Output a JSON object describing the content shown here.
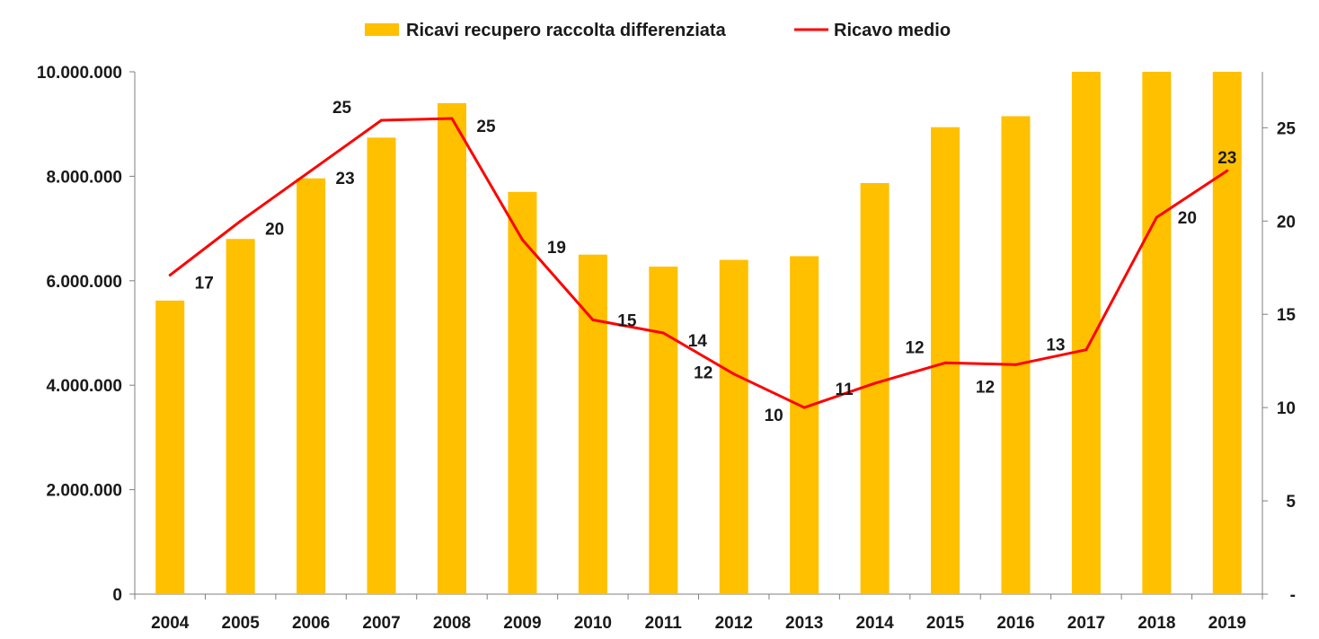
{
  "chart_data": {
    "type": "bar",
    "title": "",
    "categories": [
      "2004",
      "2005",
      "2006",
      "2007",
      "2008",
      "2009",
      "2010",
      "2011",
      "2012",
      "2013",
      "2014",
      "2015",
      "2016",
      "2017",
      "2018",
      "2019"
    ],
    "series": [
      {
        "name": "Ricavi recupero raccolta differenziata",
        "type": "bar",
        "axis": "left",
        "color": "#FFC000",
        "values": [
          5620000,
          6800000,
          7960000,
          8740000,
          9400000,
          7700000,
          6500000,
          6270000,
          6400000,
          6470000,
          7870000,
          8940000,
          9150000,
          10000000,
          10000000,
          10000000
        ]
      },
      {
        "name": "Ricavo medio",
        "type": "line",
        "axis": "right",
        "color": "#FF0000",
        "values": [
          17.1,
          20.0,
          22.7,
          25.4,
          25.5,
          19.0,
          14.7,
          14.0,
          11.8,
          10.0,
          11.3,
          12.4,
          12.3,
          13.1,
          20.2,
          22.7
        ],
        "data_labels": [
          "17",
          "20",
          "23",
          "25",
          "25",
          "19",
          "15",
          "14",
          "12",
          "10",
          "11",
          "12",
          "12",
          "13",
          "20",
          "23"
        ]
      }
    ],
    "y_left": {
      "ylim": [
        0,
        10000000
      ],
      "ticks": [
        0,
        2000000,
        4000000,
        6000000,
        8000000,
        10000000
      ],
      "tick_labels": [
        "0",
        "2.000.000",
        "4.000.000",
        "6.000.000",
        "8.000.000",
        "10.000.000"
      ]
    },
    "y_right": {
      "ylim": [
        0,
        28
      ],
      "ticks": [
        0,
        5,
        10,
        15,
        20,
        25
      ],
      "tick_labels": [
        "-",
        "5",
        "10",
        "15",
        "20",
        "25"
      ]
    },
    "grid": false,
    "legend_position": "top-center"
  }
}
